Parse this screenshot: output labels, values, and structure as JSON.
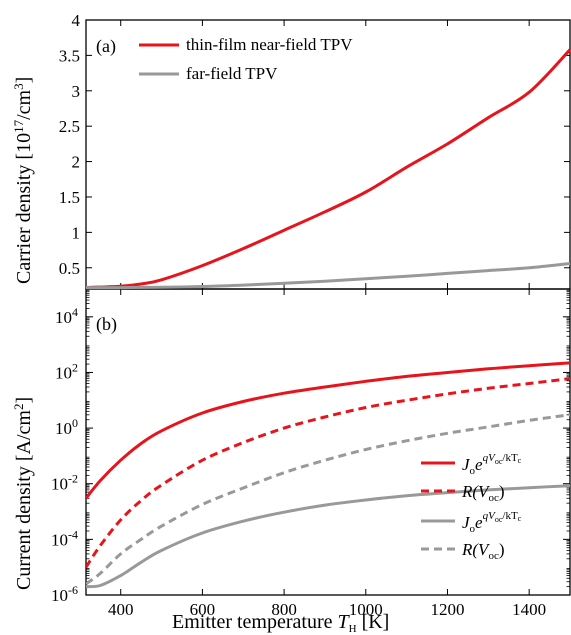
{
  "chart_data": [
    {
      "type": "line",
      "panel_label": "(a)",
      "ylabel": "Carrier density [10¹⁷/cm³]",
      "xlim": [
        315,
        1500
      ],
      "ylim": [
        0.2,
        4
      ],
      "yticks": [
        "0.5",
        "1",
        "1.5",
        "2",
        "2.5",
        "3",
        "3.5",
        "4"
      ],
      "ytick_values": [
        0.5,
        1,
        1.5,
        2,
        2.5,
        3,
        3.5,
        4
      ],
      "legend_position": "top-left",
      "series": [
        {
          "name": "thin-film near-field TPV",
          "color": "#e8131b",
          "dash": "solid",
          "x": [
            315,
            400,
            450,
            500,
            600,
            700,
            800,
            900,
            1000,
            1100,
            1200,
            1300,
            1400,
            1500
          ],
          "y": [
            0.22,
            0.24,
            0.27,
            0.33,
            0.53,
            0.77,
            1.03,
            1.29,
            1.57,
            1.92,
            2.25,
            2.62,
            2.98,
            3.58
          ]
        },
        {
          "name": "far-field TPV",
          "color": "#999999",
          "dash": "solid",
          "x": [
            315,
            400,
            500,
            600,
            700,
            800,
            900,
            1000,
            1100,
            1200,
            1300,
            1400,
            1500
          ],
          "y": [
            0.22,
            0.22,
            0.225,
            0.235,
            0.255,
            0.28,
            0.31,
            0.345,
            0.38,
            0.42,
            0.46,
            0.5,
            0.56
          ]
        }
      ]
    },
    {
      "type": "line",
      "panel_label": "(b)",
      "ylabel": "Current density [A/cm²]",
      "xlabel": "Emitter temperature T_H [K]",
      "xlim": [
        315,
        1500
      ],
      "ylog": true,
      "ylim": [
        1e-06,
        100000.0
      ],
      "xticks": [
        400,
        600,
        800,
        1000,
        1200,
        1400
      ],
      "yticks": [
        {
          "base": "10",
          "exp": "-6",
          "value": -6
        },
        {
          "base": "10",
          "exp": "-4",
          "value": -4
        },
        {
          "base": "10",
          "exp": "-2",
          "value": -2
        },
        {
          "base": "10",
          "exp": "0",
          "value": 0
        },
        {
          "base": "10",
          "exp": "2",
          "value": 2
        },
        {
          "base": "10",
          "exp": "4",
          "value": 4
        }
      ],
      "legend_position": "bottom-right",
      "series": [
        {
          "name": "J_o e^{qV_oc/kT_c} (near-field)",
          "color": "#e8131b",
          "dash": "solid",
          "x": [
            315,
            350,
            400,
            450,
            500,
            600,
            700,
            800,
            900,
            1000,
            1100,
            1200,
            1300,
            1400,
            1500
          ],
          "y": [
            0.003,
            0.013,
            0.07,
            0.28,
            0.8,
            3.5,
            9,
            18,
            30,
            48,
            72,
            100,
            135,
            175,
            220
          ]
        },
        {
          "name": "R(V_oc) (near-field)",
          "color": "#e8131b",
          "dash": "dashed",
          "x": [
            315,
            350,
            400,
            450,
            500,
            600,
            700,
            800,
            900,
            1000,
            1100,
            1200,
            1300,
            1400,
            1500
          ],
          "y": [
            1e-05,
            6e-05,
            0.0005,
            0.0025,
            0.009,
            0.07,
            0.3,
            1,
            2.5,
            5.5,
            10,
            17,
            27,
            40,
            60
          ]
        },
        {
          "name": "J_o e^{qV_oc/kT_c} (far-field)",
          "color": "#999999",
          "dash": "solid",
          "x": [
            315,
            350,
            400,
            450,
            500,
            600,
            700,
            800,
            900,
            1000,
            1100,
            1200,
            1300,
            1400,
            1500
          ],
          "y": [
            2e-06,
            2.2e-06,
            5e-06,
            1.5e-05,
            4e-05,
            0.00017,
            0.00045,
            0.00095,
            0.0017,
            0.0026,
            0.0037,
            0.0048,
            0.006,
            0.0072,
            0.0085
          ]
        },
        {
          "name": "R(V_oc) (far-field)",
          "color": "#999999",
          "dash": "dashed",
          "x": [
            315,
            350,
            400,
            450,
            500,
            600,
            700,
            800,
            900,
            1000,
            1100,
            1200,
            1300,
            1400,
            1500
          ],
          "y": [
            2.5e-06,
            6e-06,
            3e-05,
            0.0001,
            0.0003,
            0.0018,
            0.007,
            0.025,
            0.07,
            0.17,
            0.35,
            0.65,
            1.1,
            1.9,
            3.0
          ]
        }
      ]
    }
  ],
  "legend_b": {
    "j_main": "J",
    "j_sub": "o",
    "j_e": "e",
    "exp_q": "qV",
    "exp_sub": "oc",
    "exp_rest": "/kT",
    "exp_c": "c",
    "r_main": "R(V",
    "r_sub": "oc",
    "r_close": ")"
  },
  "xlabel_parts": {
    "pre": "Emitter temperature ",
    "italic": "T",
    "sub": "H",
    "post": " [K]"
  },
  "ylabel_a_parts": {
    "pre": "Carrier density [10",
    "sup1": "17",
    "mid": "/cm",
    "sup2": "3",
    "post": "]"
  },
  "ylabel_b_parts": {
    "pre": "Current density [A/cm",
    "sup": "2",
    "post": "]"
  }
}
